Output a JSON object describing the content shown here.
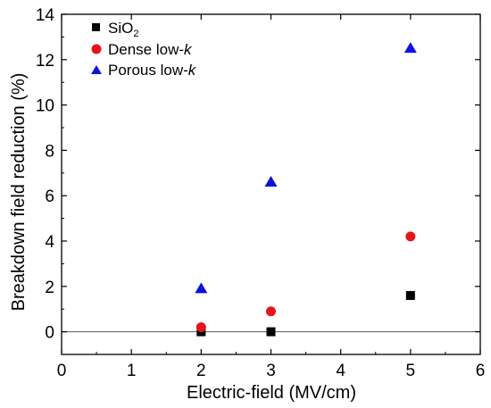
{
  "chart_data": {
    "type": "scatter",
    "xlabel": "Electric-field (MV/cm)",
    "ylabel": "Breakdown field reduction (%)",
    "xlim": [
      0,
      6
    ],
    "ylim": [
      -1,
      14
    ],
    "xticks": [
      0,
      1,
      2,
      3,
      4,
      5,
      6
    ],
    "yticks": [
      0,
      2,
      4,
      6,
      8,
      10,
      12,
      14
    ],
    "grid": false,
    "reference_line_y": 0,
    "legend_position": "top-left",
    "series": [
      {
        "name": "SiO2",
        "marker": "square",
        "color": "#000000",
        "x": [
          2,
          3,
          5
        ],
        "y": [
          0.0,
          0.0,
          1.6
        ]
      },
      {
        "name": "Dense low-k",
        "marker": "circle",
        "color": "#e8141c",
        "x": [
          2,
          3,
          5
        ],
        "y": [
          0.2,
          0.9,
          4.2
        ]
      },
      {
        "name": "Porous low-k",
        "marker": "triangle",
        "color": "#1010e0",
        "x": [
          2,
          3,
          5
        ],
        "y": [
          1.9,
          6.6,
          12.5
        ]
      }
    ]
  },
  "legend": {
    "sio2_base": "SiO",
    "sio2_sub": "2",
    "dense_prefix": "Dense low-",
    "porous_prefix": "Porous low-",
    "k_symbol": "k"
  }
}
